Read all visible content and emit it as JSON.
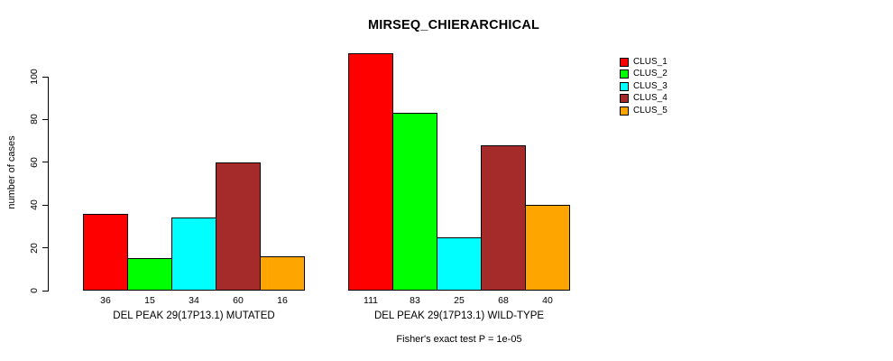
{
  "chart_data": {
    "type": "bar",
    "title": "MIRSEQ_CHIERARCHICAL",
    "ylabel": "number of cases",
    "xlabel": "",
    "ylim": [
      0,
      111
    ],
    "yticks": [
      0,
      20,
      40,
      60,
      80,
      100
    ],
    "grid": false,
    "bar_value_labels": true,
    "categories": [
      "DEL PEAK 29(17P13.1) MUTATED",
      "DEL PEAK 29(17P13.1) WILD-TYPE"
    ],
    "series": [
      {
        "name": "CLUS_1",
        "color": "#ff0000",
        "values": [
          36,
          111
        ]
      },
      {
        "name": "CLUS_2",
        "color": "#00ff00",
        "values": [
          15,
          83
        ]
      },
      {
        "name": "CLUS_3",
        "color": "#00ffff",
        "values": [
          34,
          25
        ]
      },
      {
        "name": "CLUS_4",
        "color": "#a52a2a",
        "values": [
          60,
          68
        ]
      },
      {
        "name": "CLUS_5",
        "color": "#ffa500",
        "values": [
          16,
          40
        ]
      }
    ],
    "legend": {
      "position": "right-outside-top",
      "entries": [
        "CLUS_1",
        "CLUS_2",
        "CLUS_3",
        "CLUS_4",
        "CLUS_5"
      ]
    },
    "annotation": "Fisher's exact test P = 1e-05"
  },
  "colors": {
    "background": "#ffffff",
    "axis": "#000000",
    "text": "#000000"
  }
}
